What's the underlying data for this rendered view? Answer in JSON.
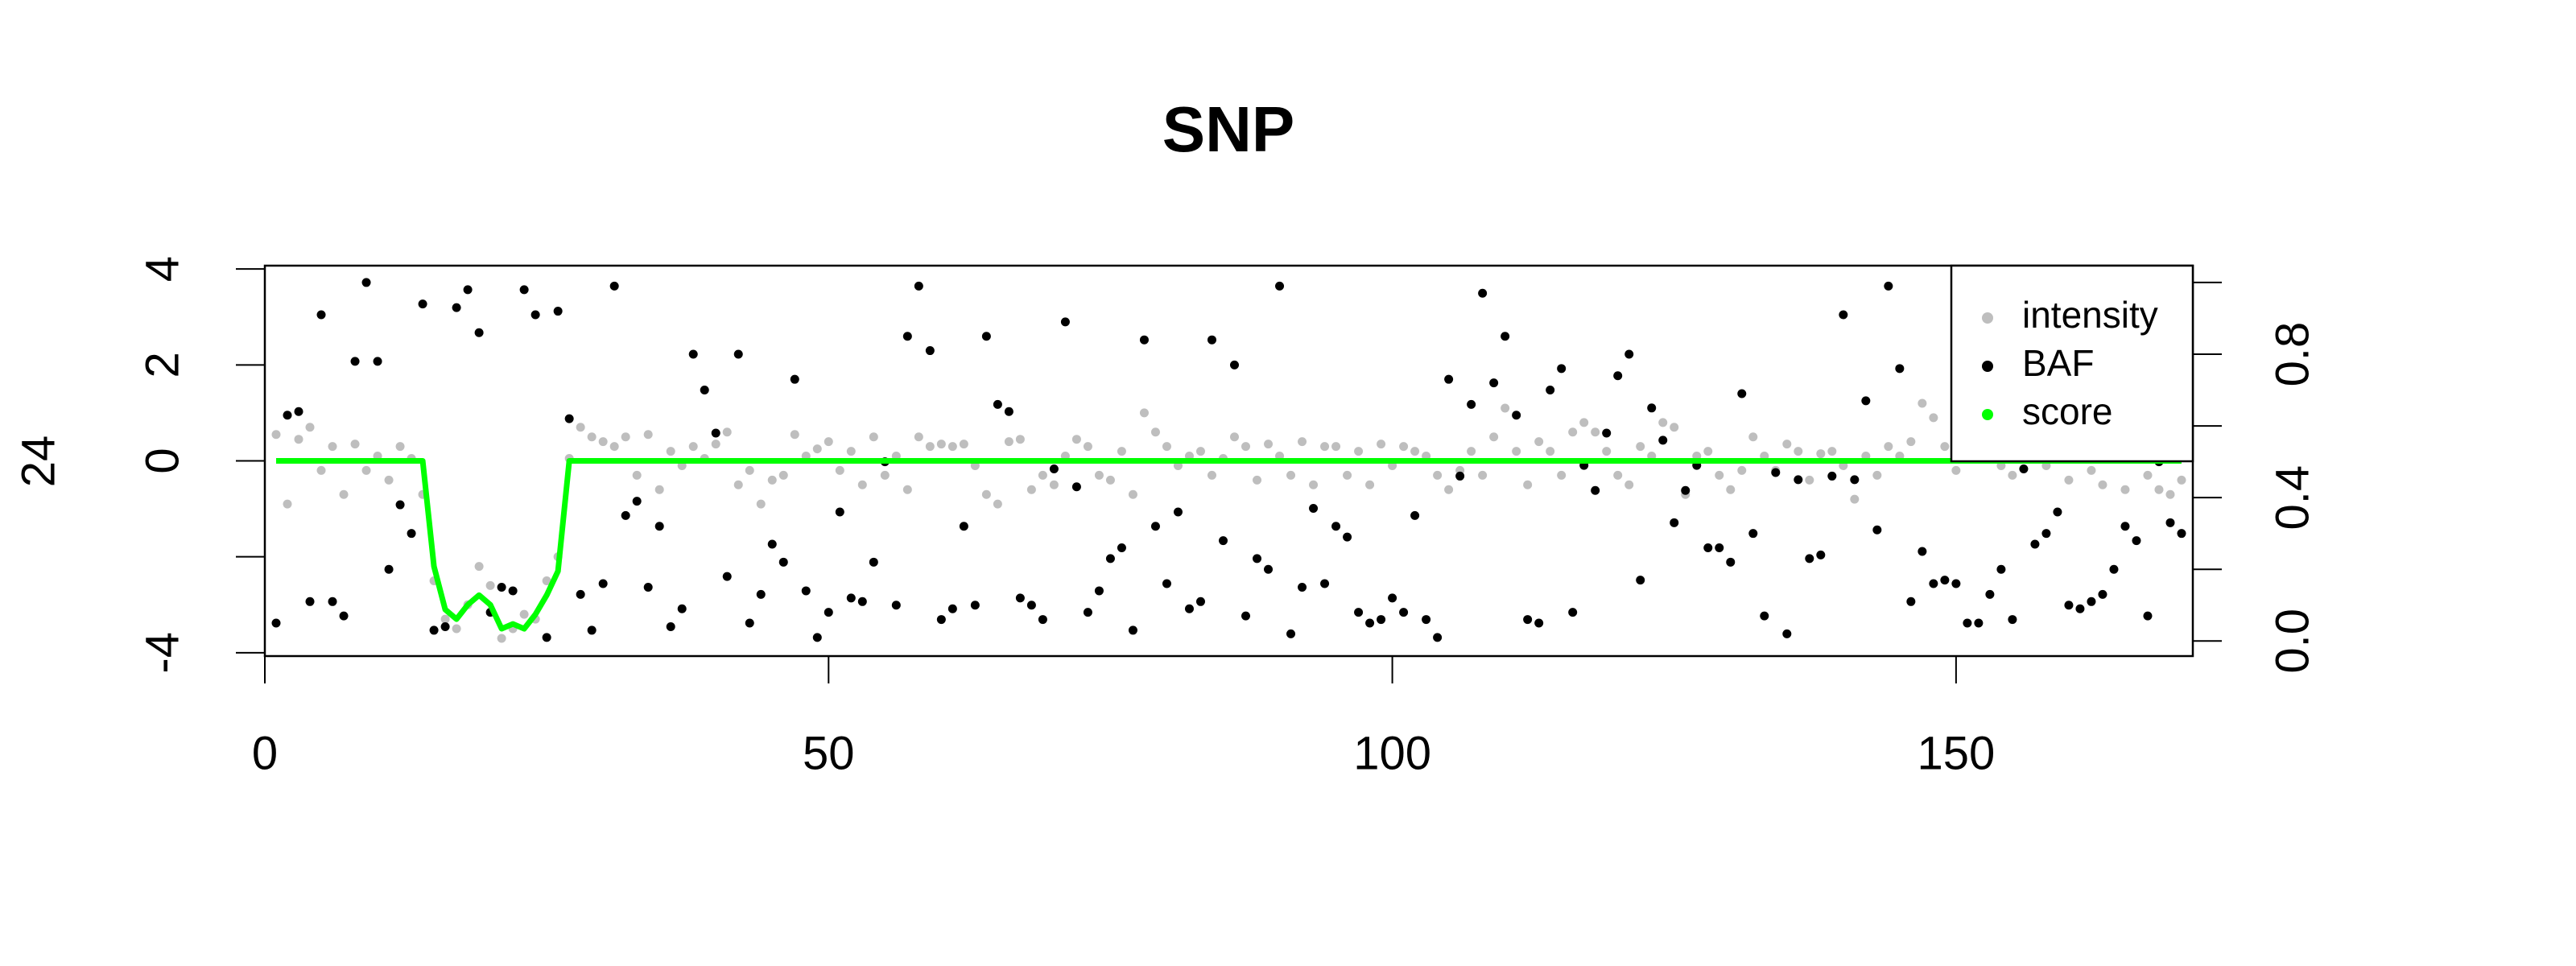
{
  "chart_data": {
    "type": "scatter",
    "title": "SNP",
    "y_label": "24",
    "x": [
      1,
      2,
      3,
      4,
      5,
      6,
      7,
      8,
      9,
      10,
      11,
      12,
      13,
      14,
      15,
      16,
      17,
      18,
      19,
      20,
      21,
      22,
      23,
      24,
      25,
      26,
      27,
      28,
      29,
      30,
      31,
      32,
      33,
      34,
      35,
      36,
      37,
      38,
      39,
      40,
      41,
      42,
      43,
      44,
      45,
      46,
      47,
      48,
      49,
      50,
      51,
      52,
      53,
      54,
      55,
      56,
      57,
      58,
      59,
      60,
      61,
      62,
      63,
      64,
      65,
      66,
      67,
      68,
      69,
      70,
      71,
      72,
      73,
      74,
      75,
      76,
      77,
      78,
      79,
      80,
      81,
      82,
      83,
      84,
      85,
      86,
      87,
      88,
      89,
      90,
      91,
      92,
      93,
      94,
      95,
      96,
      97,
      98,
      99,
      100,
      101,
      102,
      103,
      104,
      105,
      106,
      107,
      108,
      109,
      110,
      111,
      112,
      113,
      114,
      115,
      116,
      117,
      118,
      119,
      120,
      121,
      122,
      123,
      124,
      125,
      126,
      127,
      128,
      129,
      130,
      131,
      132,
      133,
      134,
      135,
      136,
      137,
      138,
      139,
      140,
      141,
      142,
      143,
      144,
      145,
      146,
      147,
      148,
      149,
      150,
      151,
      152,
      153,
      154,
      155,
      156,
      157,
      158,
      159,
      160,
      161,
      162,
      163,
      164,
      165,
      166,
      167,
      168,
      169,
      170
    ],
    "series": [
      {
        "name": "intensity",
        "color": "#bebebe",
        "mark": "point",
        "values": [
          0.55,
          -0.9,
          0.45,
          0.7,
          -0.2,
          0.3,
          -0.7,
          0.35,
          -0.2,
          0.1,
          -0.4,
          0.3,
          0.05,
          -0.7,
          -2.5,
          -3.3,
          -3.5,
          -3.0,
          -2.2,
          -2.6,
          -3.7,
          -3.5,
          -3.2,
          -3.3,
          -2.5,
          -2.0,
          0.05,
          0.7,
          0.5,
          0.4,
          0.3,
          0.5,
          -0.3,
          0.55,
          -0.6,
          0.2,
          -0.1,
          0.3,
          0.05,
          0.35,
          0.6,
          -0.5,
          -0.2,
          -0.9,
          -0.4,
          -0.3,
          0.55,
          0.1,
          0.25,
          0.4,
          -0.2,
          0.2,
          -0.5,
          0.5,
          -0.3,
          0.1,
          -0.6,
          0.5,
          0.3,
          0.35,
          0.3,
          0.35,
          -0.1,
          -0.7,
          -0.9,
          0.4,
          0.45,
          -0.6,
          -0.3,
          -0.5,
          0.1,
          0.45,
          0.3,
          -0.3,
          -0.4,
          0.2,
          -0.7,
          1.0,
          0.6,
          0.3,
          -0.1,
          0.1,
          0.2,
          -0.3,
          0.05,
          0.5,
          0.3,
          -0.4,
          0.35,
          0.1,
          -0.3,
          0.4,
          -0.5,
          0.3,
          0.3,
          -0.3,
          0.2,
          -0.5,
          0.35,
          -0.1,
          0.3,
          0.2,
          0.1,
          -0.3,
          -0.6,
          -0.2,
          0.2,
          -0.3,
          0.5,
          1.1,
          0.2,
          -0.5,
          0.4,
          0.2,
          -0.3,
          0.6,
          0.8,
          0.6,
          0.2,
          -0.3,
          -0.5,
          0.3,
          0.1,
          0.8,
          0.7,
          -0.7,
          0.1,
          0.2,
          -0.3,
          -0.6,
          -0.2,
          0.5,
          0.1,
          -0.2,
          0.35,
          0.2,
          -0.4,
          0.15,
          0.2,
          -0.1,
          -0.8,
          0.1,
          -0.3,
          0.3,
          0.1,
          0.4,
          1.2,
          0.9,
          0.3,
          -0.2,
          0.1,
          0.4,
          0.1,
          -0.1,
          -0.3,
          0.2,
          0.5,
          -0.1,
          0.3,
          -0.4,
          0.1,
          -0.2,
          -0.5,
          0.2,
          -0.6,
          0.1,
          -0.3,
          -0.6,
          -0.7,
          -0.4
        ]
      },
      {
        "name": "BAF",
        "color": "#000000",
        "mark": "point",
        "axis": "y2",
        "values": [
          0.05,
          0.63,
          0.64,
          0.11,
          0.91,
          0.11,
          0.07,
          0.78,
          1.0,
          0.78,
          0.2,
          0.38,
          0.3,
          0.94,
          0.03,
          0.04,
          0.93,
          0.98,
          0.86,
          0.08,
          0.15,
          0.14,
          0.98,
          0.91,
          0.01,
          0.92,
          0.62,
          0.13,
          0.03,
          0.16,
          0.99,
          0.35,
          0.39,
          0.15,
          0.32,
          0.04,
          0.09,
          0.8,
          0.7,
          0.58,
          0.18,
          0.8,
          0.05,
          0.13,
          0.27,
          0.22,
          0.73,
          0.14,
          0.01,
          0.08,
          0.36,
          0.12,
          0.11,
          0.22,
          0.5,
          0.1,
          0.85,
          0.99,
          0.81,
          0.06,
          0.09,
          0.32,
          0.1,
          0.85,
          0.66,
          0.64,
          0.12,
          0.1,
          0.06,
          0.48,
          0.89,
          0.43,
          0.08,
          0.14,
          0.23,
          0.26,
          0.03,
          0.84,
          0.32,
          0.16,
          0.36,
          0.09,
          0.11,
          0.84,
          0.28,
          0.77,
          0.07,
          0.23,
          0.2,
          0.99,
          0.02,
          0.15,
          0.37,
          0.16,
          0.32,
          0.29,
          0.08,
          0.05,
          0.06,
          0.12,
          0.08,
          0.35,
          0.06,
          0.01,
          0.73,
          0.46,
          0.66,
          0.97,
          0.72,
          0.85,
          0.63,
          0.06,
          0.05,
          0.7,
          0.76,
          0.08,
          0.49,
          0.42,
          0.58,
          0.74,
          0.8,
          0.17,
          0.65,
          0.56,
          0.33,
          0.42,
          0.49,
          0.26,
          0.26,
          0.22,
          0.69,
          0.3,
          0.07,
          0.47,
          0.02,
          0.45,
          0.23,
          0.24,
          0.46,
          0.91,
          0.45,
          0.67,
          0.31,
          0.99,
          0.76,
          0.11,
          0.25,
          0.16,
          0.17,
          0.16,
          0.05,
          0.05,
          0.13,
          0.2,
          0.06,
          0.48,
          0.27,
          0.3,
          0.36,
          0.1,
          0.09,
          0.11,
          0.13,
          0.2,
          0.32,
          0.28,
          0.07,
          0.5,
          0.33,
          0.3
        ]
      },
      {
        "name": "score",
        "color": "#00ff00",
        "mark": "line",
        "values": [
          0,
          0,
          0,
          0,
          0,
          0,
          0,
          0,
          0,
          0,
          0,
          0,
          0,
          0,
          -2.2,
          -3.1,
          -3.3,
          -3.0,
          -2.8,
          -3.0,
          -3.5,
          -3.4,
          -3.5,
          -3.2,
          -2.8,
          -2.3,
          0,
          0,
          0,
          0,
          0,
          0,
          0,
          0,
          0,
          0,
          0,
          0,
          0,
          0,
          0,
          0,
          0,
          0,
          0,
          0,
          0,
          0,
          0,
          0,
          0,
          0,
          0,
          0,
          0,
          0,
          0,
          0,
          0,
          0,
          0,
          0,
          0,
          0,
          0,
          0,
          0,
          0,
          0,
          0,
          0,
          0,
          0,
          0,
          0,
          0,
          0,
          0,
          0,
          0,
          0,
          0,
          0,
          0,
          0,
          0,
          0,
          0,
          0,
          0,
          0,
          0,
          0,
          0,
          0,
          0,
          0,
          0,
          0,
          0,
          0,
          0,
          0,
          0,
          0,
          0,
          0,
          0,
          0,
          0,
          0,
          0,
          0,
          0,
          0,
          0,
          0,
          0,
          0,
          0,
          0,
          0,
          0,
          0,
          0,
          0,
          0,
          0,
          0,
          0,
          0,
          0,
          0,
          0,
          0,
          0,
          0,
          0,
          0,
          0,
          0,
          0,
          0,
          0,
          0,
          0,
          0,
          0,
          0,
          0,
          0,
          0,
          0,
          0,
          0,
          0,
          0,
          0,
          0,
          0,
          0,
          0,
          0,
          0,
          0,
          0,
          0,
          0,
          0,
          0
        ]
      }
    ],
    "xlim": [
      0,
      171
    ],
    "xticks": [
      0,
      50,
      100,
      150
    ],
    "ylim": [
      -4.07,
      4.07
    ],
    "yticks": [
      4,
      2,
      0,
      {
        "value": -2,
        "label": null
      },
      -4
    ],
    "y2lim": [
      -0.042,
      1.047
    ],
    "y2ticks": [
      {
        "value": 0,
        "label": "0.0"
      },
      {
        "value": 0.2,
        "label": null
      },
      {
        "value": 0.4,
        "label": "0.4"
      },
      {
        "value": 0.6,
        "label": null
      },
      {
        "value": 0.8,
        "label": "0.8"
      },
      {
        "value": 1.0,
        "label": null
      }
    ],
    "legend": "topright"
  }
}
